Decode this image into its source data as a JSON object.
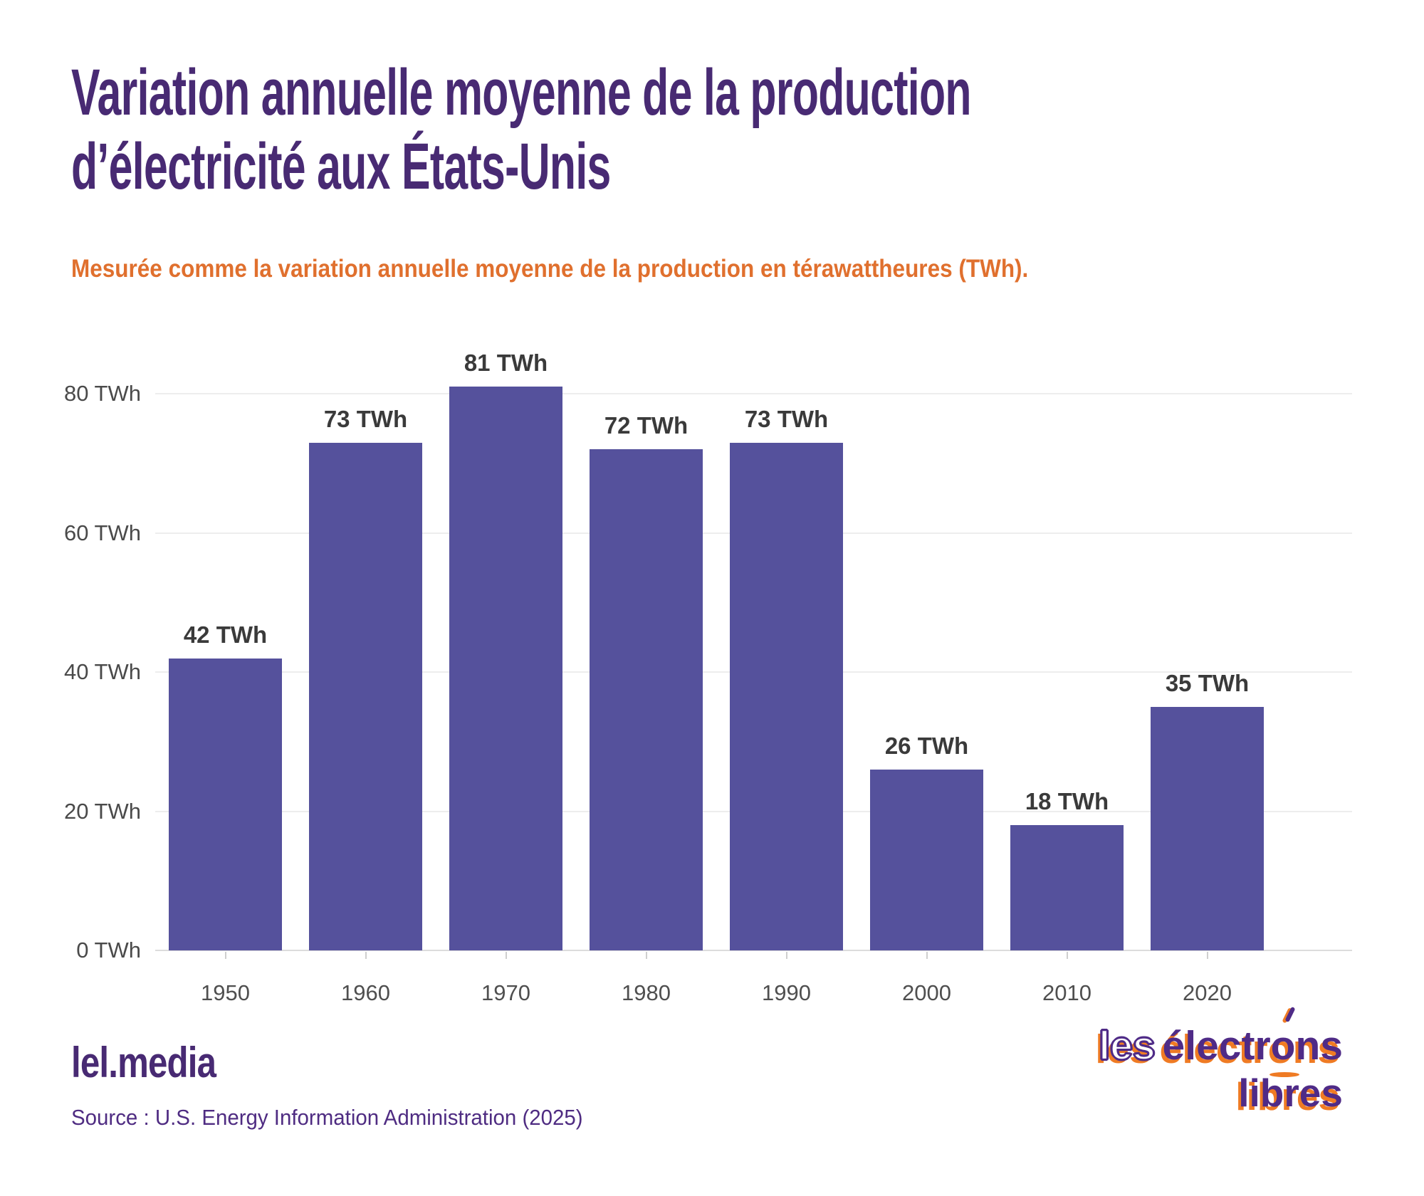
{
  "header": {
    "title_line1": "Variation annuelle moyenne de la production",
    "title_line2": "d’électricité aux États-Unis",
    "subtitle": "Mesurée comme la variation annuelle moyenne de la production en térawattheures (TWh)."
  },
  "chart_data": {
    "type": "bar",
    "title": "Variation annuelle moyenne de la production d’électricité aux États-Unis",
    "subtitle": "Mesurée comme la variation annuelle moyenne de la production en térawattheures (TWh).",
    "categories": [
      "1950",
      "1960",
      "1970",
      "1980",
      "1990",
      "2000",
      "2010",
      "2020"
    ],
    "values": [
      42,
      73,
      81,
      72,
      73,
      26,
      18,
      35
    ],
    "bar_labels": [
      "42 TWh",
      "73 TWh",
      "81 TWh",
      "72 TWh",
      "73 TWh",
      "26 TWh",
      "18 TWh",
      "35 TWh"
    ],
    "unit": "TWh",
    "xlabel": "",
    "ylabel": "",
    "yticks": [
      0,
      20,
      40,
      60,
      80
    ],
    "ytick_labels": [
      "0 TWh",
      "20 TWh",
      "40 TWh",
      "60 TWh",
      "80 TWh"
    ],
    "ylim": [
      0,
      88
    ],
    "grid": true,
    "legend": "none",
    "bar_color": "#55519c"
  },
  "colors": {
    "title_purple": "#482a73",
    "subtitle_orange": "#e0702e",
    "bar_purple": "#55519c",
    "logo_purple": "#4f2b87",
    "logo_orange": "#ef7b24"
  },
  "footer": {
    "brand": "lel.media",
    "source": "Source : U.S. Energy Information Administration (2025)",
    "logo_les": "les",
    "logo_electrons_pre": "électr",
    "logo_o": "o",
    "logo_electrons_post": "ns",
    "logo_libres": "libres"
  }
}
